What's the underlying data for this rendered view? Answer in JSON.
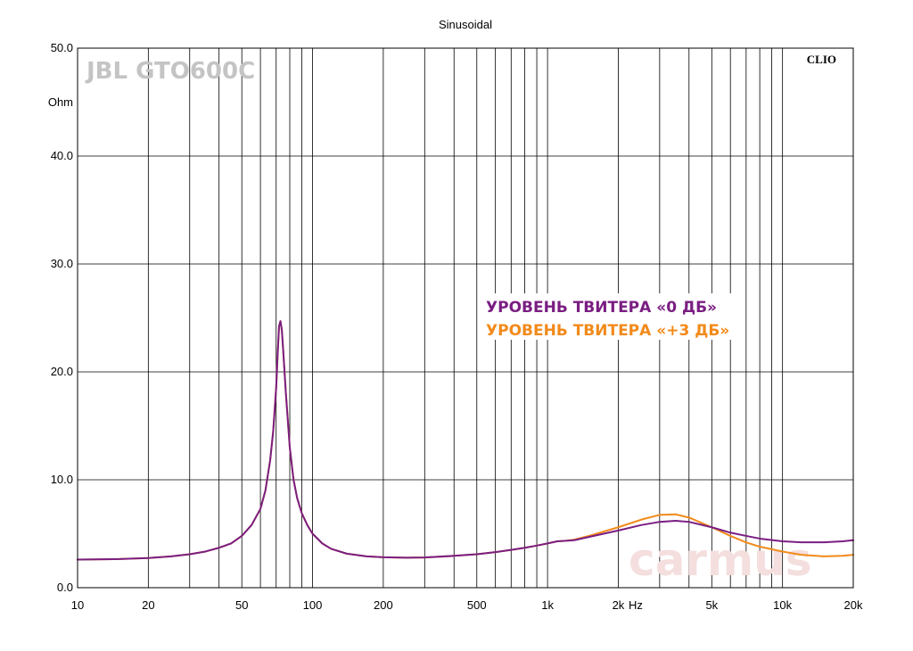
{
  "chart_data": {
    "type": "line",
    "title": "Sinusoidal",
    "brand_label": "JBL GTO600C",
    "software_label": "CLIO",
    "watermark": "carmus",
    "xlabel": "Hz",
    "ylabel": "Ohm",
    "x_scale": "log",
    "xlim": [
      10,
      20000
    ],
    "ylim": [
      0,
      50
    ],
    "grid": true,
    "legend_placement": "center-right",
    "x_tick_labels": [
      "10",
      "20",
      "50",
      "100",
      "200",
      "500",
      "1k",
      "2k",
      "5k",
      "10k",
      "20k"
    ],
    "x_tick_values": [
      10,
      20,
      50,
      100,
      200,
      500,
      1000,
      2000,
      5000,
      10000,
      20000
    ],
    "y_tick_labels": [
      "0.0",
      "10.0",
      "20.0",
      "30.0",
      "40.0",
      "50.0"
    ],
    "y_tick_values": [
      0,
      10,
      20,
      30,
      40,
      50
    ],
    "colors": {
      "series_0db": "#7a1e82",
      "series_3db": "#f28a1a",
      "grid": "#000000",
      "brand": "#c4c4c4",
      "watermark": "#f4dede"
    },
    "series": [
      {
        "name": "УРОВЕНЬ ТВИТЕРА «0 ДБ»",
        "color": "#7a1e82",
        "points": [
          [
            10,
            2.6
          ],
          [
            15,
            2.65
          ],
          [
            20,
            2.75
          ],
          [
            25,
            2.9
          ],
          [
            30,
            3.1
          ],
          [
            35,
            3.35
          ],
          [
            40,
            3.7
          ],
          [
            45,
            4.1
          ],
          [
            50,
            4.8
          ],
          [
            55,
            5.8
          ],
          [
            60,
            7.3
          ],
          [
            63,
            9.0
          ],
          [
            66,
            11.8
          ],
          [
            68,
            14.5
          ],
          [
            70,
            18.5
          ],
          [
            71,
            21.5
          ],
          [
            72,
            24.2
          ],
          [
            73,
            24.7
          ],
          [
            74,
            23.9
          ],
          [
            75,
            22.0
          ],
          [
            77,
            18.0
          ],
          [
            80,
            13.0
          ],
          [
            83,
            10.0
          ],
          [
            86,
            8.3
          ],
          [
            90,
            6.9
          ],
          [
            95,
            5.8
          ],
          [
            100,
            5.0
          ],
          [
            110,
            4.1
          ],
          [
            120,
            3.6
          ],
          [
            140,
            3.15
          ],
          [
            170,
            2.9
          ],
          [
            200,
            2.82
          ],
          [
            250,
            2.78
          ],
          [
            300,
            2.8
          ],
          [
            400,
            2.95
          ],
          [
            500,
            3.1
          ],
          [
            600,
            3.3
          ],
          [
            700,
            3.5
          ],
          [
            800,
            3.7
          ],
          [
            900,
            3.9
          ],
          [
            1000,
            4.1
          ],
          [
            1100,
            4.3
          ],
          [
            1200,
            4.35
          ],
          [
            1300,
            4.4
          ],
          [
            1500,
            4.7
          ],
          [
            2000,
            5.3
          ],
          [
            2500,
            5.8
          ],
          [
            3000,
            6.1
          ],
          [
            3500,
            6.2
          ],
          [
            4000,
            6.1
          ],
          [
            5000,
            5.6
          ],
          [
            6000,
            5.1
          ],
          [
            7000,
            4.8
          ],
          [
            8000,
            4.55
          ],
          [
            10000,
            4.3
          ],
          [
            12000,
            4.2
          ],
          [
            15000,
            4.2
          ],
          [
            18000,
            4.3
          ],
          [
            20000,
            4.4
          ]
        ]
      },
      {
        "name": "УРОВЕНЬ ТВИТЕРА «+3 ДБ»",
        "color": "#f28a1a",
        "points": [
          [
            10,
            2.6
          ],
          [
            15,
            2.65
          ],
          [
            20,
            2.75
          ],
          [
            25,
            2.9
          ],
          [
            30,
            3.1
          ],
          [
            35,
            3.35
          ],
          [
            40,
            3.7
          ],
          [
            45,
            4.1
          ],
          [
            50,
            4.8
          ],
          [
            55,
            5.8
          ],
          [
            60,
            7.3
          ],
          [
            63,
            9.0
          ],
          [
            66,
            11.8
          ],
          [
            68,
            14.5
          ],
          [
            70,
            18.5
          ],
          [
            71,
            21.5
          ],
          [
            72,
            24.2
          ],
          [
            73,
            24.7
          ],
          [
            74,
            23.9
          ],
          [
            75,
            22.0
          ],
          [
            77,
            18.0
          ],
          [
            80,
            13.0
          ],
          [
            83,
            10.0
          ],
          [
            86,
            8.3
          ],
          [
            90,
            6.9
          ],
          [
            95,
            5.8
          ],
          [
            100,
            5.0
          ],
          [
            110,
            4.1
          ],
          [
            120,
            3.6
          ],
          [
            140,
            3.15
          ],
          [
            170,
            2.9
          ],
          [
            200,
            2.82
          ],
          [
            250,
            2.78
          ],
          [
            300,
            2.8
          ],
          [
            400,
            2.95
          ],
          [
            500,
            3.1
          ],
          [
            600,
            3.3
          ],
          [
            700,
            3.5
          ],
          [
            800,
            3.7
          ],
          [
            900,
            3.9
          ],
          [
            1000,
            4.1
          ],
          [
            1100,
            4.3
          ],
          [
            1200,
            4.35
          ],
          [
            1300,
            4.45
          ],
          [
            1500,
            4.8
          ],
          [
            2000,
            5.6
          ],
          [
            2500,
            6.3
          ],
          [
            3000,
            6.75
          ],
          [
            3500,
            6.8
          ],
          [
            4000,
            6.5
          ],
          [
            5000,
            5.6
          ],
          [
            6000,
            4.8
          ],
          [
            7000,
            4.2
          ],
          [
            8000,
            3.8
          ],
          [
            10000,
            3.35
          ],
          [
            12000,
            3.05
          ],
          [
            15000,
            2.9
          ],
          [
            18000,
            2.95
          ],
          [
            20000,
            3.05
          ]
        ]
      }
    ]
  }
}
